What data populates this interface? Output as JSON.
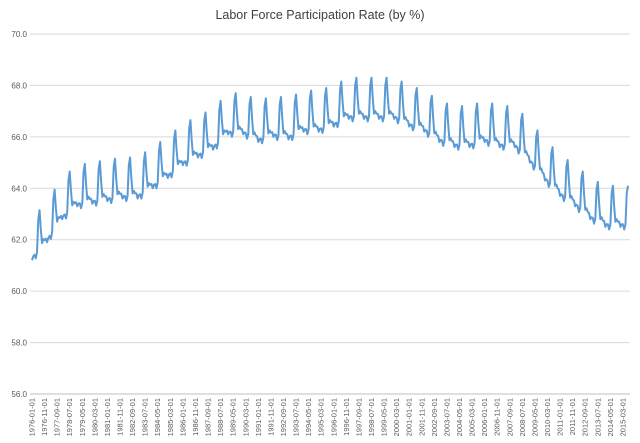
{
  "chart_data": {
    "type": "line",
    "title": "Labor Force Participation Rate (by %)",
    "xlabel": "",
    "ylabel": "",
    "ylim": [
      56.0,
      70.0
    ],
    "yticks": [
      "56.0",
      "58.0",
      "60.0",
      "62.0",
      "64.0",
      "66.0",
      "68.0",
      "70.0"
    ],
    "grid": true,
    "legend": "none",
    "line_color": "#5b9bd5",
    "xticks": [
      "1976-01-01",
      "1976-11-01",
      "1977-09-01",
      "1978-07-01",
      "1979-05-01",
      "1980-03-01",
      "1981-01-01",
      "1981-11-01",
      "1982-09-01",
      "1983-07-01",
      "1984-05-01",
      "1985-03-01",
      "1986-01-01",
      "1986-11-01",
      "1987-09-01",
      "1988-07-01",
      "1989-05-01",
      "1990-03-01",
      "1991-01-01",
      "1991-11-01",
      "1992-09-01",
      "1993-07-01",
      "1994-05-01",
      "1995-03-01",
      "1996-01-01",
      "1996-11-01",
      "1997-09-01",
      "1998-07-01",
      "1999-05-01",
      "2000-03-01",
      "2001-01-01",
      "2001-11-01",
      "2002-09-01",
      "2003-07-01",
      "2004-05-01",
      "2005-03-01",
      "2006-01-01",
      "2006-11-01",
      "2007-09-01",
      "2008-07-01",
      "2009-05-01",
      "2010-03-01",
      "2011-01-01",
      "2011-11-01",
      "2012-09-01",
      "2013-07-01",
      "2014-05-01",
      "2015-03-01"
    ],
    "series": [
      {
        "x_start": "1976-01-01",
        "x_end": "2015-07-01",
        "annual_mean": [
          [
            "1976",
            61.6
          ],
          [
            "1977",
            62.3
          ],
          [
            "1978",
            63.2
          ],
          [
            "1979",
            63.7
          ],
          [
            "1980",
            63.8
          ],
          [
            "1981",
            63.9
          ],
          [
            "1982",
            64.0
          ],
          [
            "1983",
            64.0
          ],
          [
            "1984",
            64.4
          ],
          [
            "1985",
            64.8
          ],
          [
            "1986",
            65.3
          ],
          [
            "1987",
            65.6
          ],
          [
            "1988",
            65.9
          ],
          [
            "1989",
            66.5
          ],
          [
            "1990",
            66.5
          ],
          [
            "1991",
            66.2
          ],
          [
            "1992",
            66.4
          ],
          [
            "1993",
            66.3
          ],
          [
            "1994",
            66.6
          ],
          [
            "1995",
            66.6
          ],
          [
            "1996",
            66.8
          ],
          [
            "1997",
            67.1
          ],
          [
            "1998",
            67.1
          ],
          [
            "1999",
            67.1
          ],
          [
            "2000",
            67.1
          ],
          [
            "2001",
            66.8
          ],
          [
            "2002",
            66.6
          ],
          [
            "2003",
            66.2
          ],
          [
            "2004",
            66.0
          ],
          [
            "2005",
            66.0
          ],
          [
            "2006",
            66.2
          ],
          [
            "2007",
            66.0
          ],
          [
            "2008",
            66.0
          ],
          [
            "2009",
            65.4
          ],
          [
            "2010",
            64.7
          ],
          [
            "2011",
            64.1
          ],
          [
            "2012",
            63.7
          ],
          [
            "2013",
            63.2
          ],
          [
            "2014",
            62.9
          ],
          [
            "2015",
            62.9
          ]
        ],
        "seasonal_offsets": [
          -0.4,
          -0.3,
          -0.3,
          -0.5,
          -0.3,
          0.9,
          1.2,
          0.4,
          -0.2,
          -0.1,
          -0.2,
          -0.2
        ]
      }
    ]
  }
}
